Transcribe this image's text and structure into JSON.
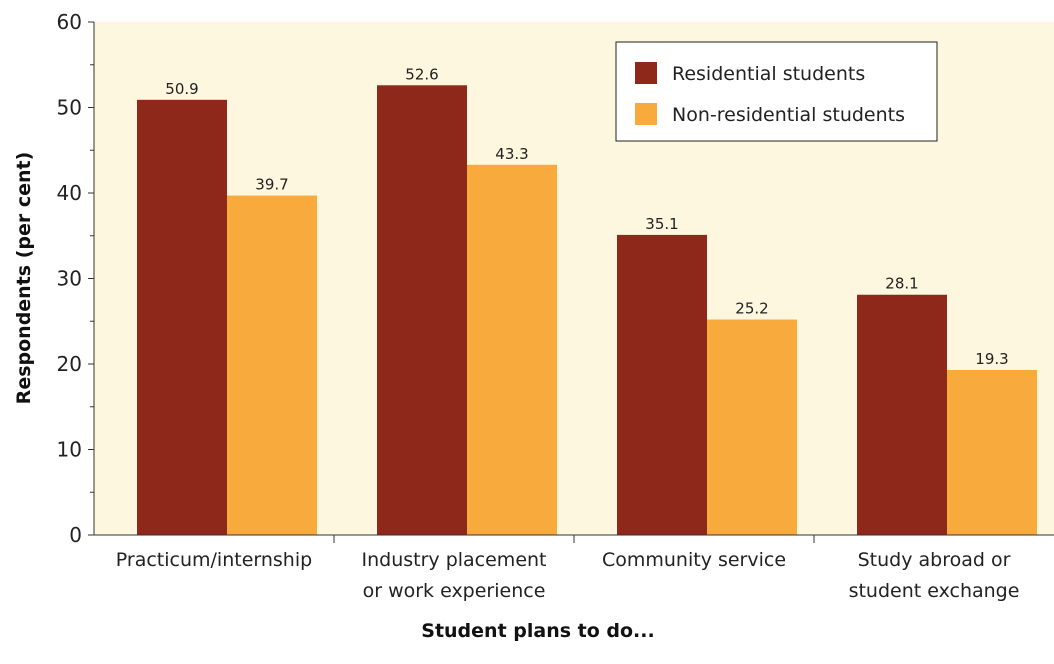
{
  "chart_data": {
    "type": "bar",
    "categories": [
      [
        "Practicum/internship"
      ],
      [
        "Industry placement",
        "or work experience"
      ],
      [
        "Community service"
      ],
      [
        "Study abroad or",
        "student exchange"
      ]
    ],
    "series": [
      {
        "name": "Residential students",
        "color": "#8e281b",
        "values": [
          50.9,
          52.6,
          35.1,
          28.1
        ]
      },
      {
        "name": "Non-residential students",
        "color": "#f8ab3c",
        "values": [
          39.7,
          43.3,
          25.2,
          19.3
        ]
      }
    ],
    "xlabel": "Student plans to do...",
    "ylabel": "Respondents (per cent)",
    "ylim": [
      0,
      60
    ],
    "yticks": [
      0,
      10,
      20,
      30,
      40,
      50,
      60
    ],
    "grid": false,
    "legend_position": "top-right",
    "plot_background": "#fdf7df"
  }
}
